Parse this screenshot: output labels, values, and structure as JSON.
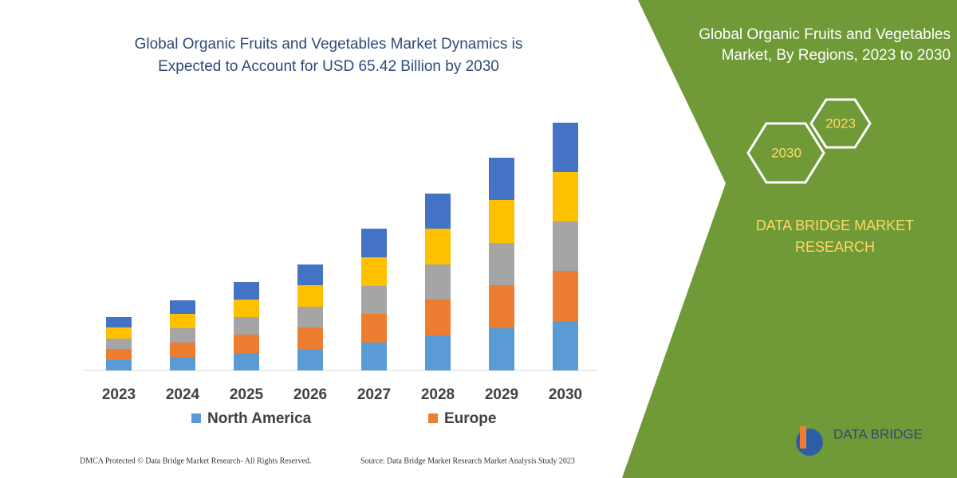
{
  "chart_data": {
    "type": "stacked-bar",
    "title": [
      "Global Organic Fruits and Vegetables Market Dynamics is",
      "Expected to Account for USD 65.42 Billion by 2030"
    ],
    "categories": [
      "2023",
      "2024",
      "2025",
      "2026",
      "2027",
      "2028",
      "2029",
      "2030"
    ],
    "series": [
      {
        "name": "North America",
        "color": "#5b9bd5",
        "values": [
          13,
          17,
          22,
          26,
          35,
          44,
          53,
          62
        ]
      },
      {
        "name": "Europe",
        "color": "#ed7d31",
        "values": [
          14,
          18,
          23,
          28,
          36,
          45,
          54,
          63
        ]
      },
      {
        "color": "#a5a5a5",
        "values": [
          13,
          18,
          22,
          26,
          35,
          44,
          53,
          62
        ]
      },
      {
        "color": "#ffc000",
        "values": [
          14,
          18,
          22,
          27,
          36,
          45,
          54,
          62
        ]
      },
      {
        "color": "#4472c4",
        "values": [
          13,
          17,
          22,
          26,
          36,
          44,
          53,
          62
        ]
      }
    ]
  },
  "panel": {
    "title": [
      "Global Organic Fruits and Vegetables",
      "Market, By Regions, 2023 to 2030"
    ],
    "hex_left": "2030",
    "hex_right": "2023",
    "brand": [
      "DATA BRIDGE MARKET",
      "RESEARCH"
    ],
    "logo": "DATA BRIDGE"
  },
  "footer": {
    "left": "DMCA Protected © Data Bridge Market Research-  All Rights Reserved.",
    "right": "Source: Data Bridge Market Research  Market Analysis Study 2023"
  }
}
